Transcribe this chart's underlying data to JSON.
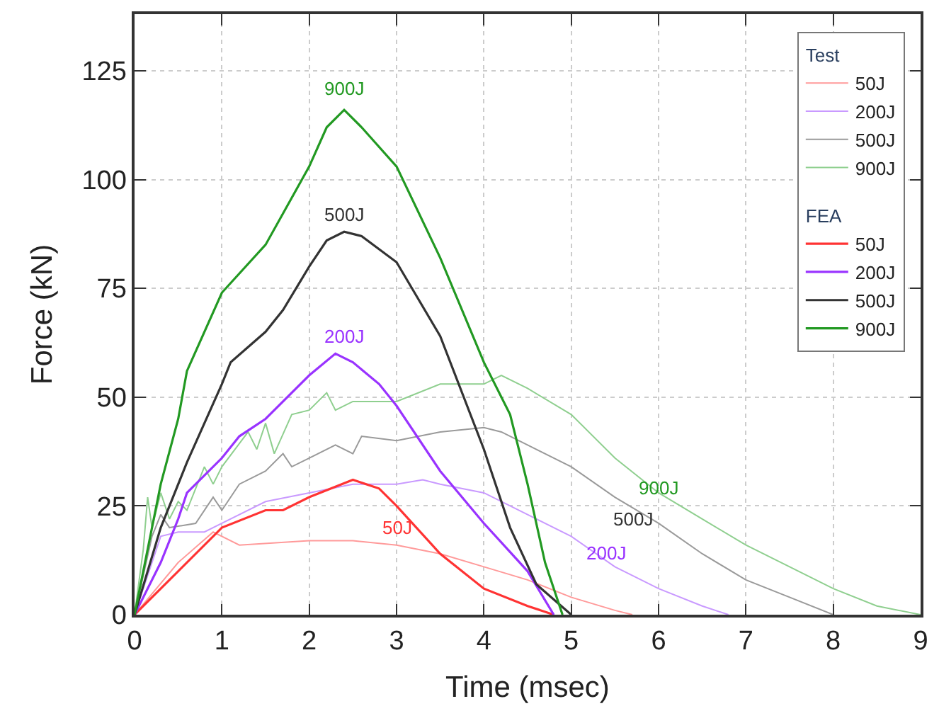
{
  "chart_data": {
    "type": "line",
    "xlabel": "Time (msec)",
    "ylabel": "Force (kN)",
    "legend_title": [
      "Test",
      "FEA"
    ],
    "xlim": [
      0,
      9
    ],
    "ylim": [
      0,
      138
    ],
    "xticks": [
      0,
      1,
      2,
      3,
      4,
      5,
      6,
      7,
      8,
      9
    ],
    "yticks": [
      0,
      25,
      50,
      75,
      100,
      125
    ],
    "grid": true,
    "legend": "top right",
    "line_style": "solid",
    "marker": "none",
    "series": [
      {
        "name": "50J",
        "color": "#ff9a9a",
        "x": [
          0,
          0.5,
          0.9,
          1.2,
          2,
          2.5,
          3,
          3.5,
          4,
          4.5,
          5,
          5.5,
          5.7
        ],
        "values": [
          0,
          12,
          19,
          16,
          17,
          17,
          16,
          14,
          11,
          8,
          4,
          1,
          0
        ]
      },
      {
        "name": "200J",
        "color": "#c99aff",
        "x": [
          0,
          0.3,
          0.5,
          0.8,
          1,
          1.5,
          2,
          2.5,
          3,
          3.3,
          3.5,
          4,
          4.5,
          5,
          5.5,
          6,
          6.5,
          6.8
        ],
        "values": [
          0,
          18,
          19,
          19,
          21,
          26,
          28,
          30,
          30,
          31,
          30,
          28,
          23,
          18,
          11,
          6,
          2,
          0
        ]
      },
      {
        "name": "500J",
        "color": "#9a9a9a",
        "x": [
          0,
          0.2,
          0.3,
          0.4,
          0.7,
          0.9,
          1,
          1.2,
          1.5,
          1.7,
          1.8,
          2,
          2.3,
          2.5,
          2.6,
          3,
          3.5,
          4,
          4.2,
          4.5,
          5,
          5.5,
          6,
          6.5,
          7,
          7.5,
          8
        ],
        "values": [
          0,
          18,
          23,
          20,
          21,
          27,
          24,
          30,
          33,
          37,
          34,
          36,
          39,
          37,
          41,
          40,
          42,
          43,
          42,
          39,
          34,
          27,
          21,
          14,
          8,
          4,
          0
        ]
      },
      {
        "name": "900J",
        "color": "#8fcf8f",
        "x": [
          0,
          0.1,
          0.15,
          0.2,
          0.3,
          0.4,
          0.5,
          0.6,
          0.8,
          0.9,
          1,
          1.3,
          1.4,
          1.5,
          1.6,
          1.8,
          2,
          2.2,
          2.3,
          2.5,
          3,
          3.5,
          4,
          4.2,
          4.5,
          5,
          5.5,
          6,
          6.5,
          7,
          7.5,
          8,
          8.5,
          9
        ],
        "values": [
          0,
          15,
          27,
          20,
          28,
          22,
          26,
          24,
          34,
          30,
          34,
          42,
          38,
          44,
          37,
          46,
          47,
          51,
          47,
          49,
          49,
          53,
          53,
          55,
          52,
          46,
          36,
          28,
          22,
          16,
          11,
          6,
          2,
          0
        ]
      },
      {
        "name": "50J",
        "color": "#ff3333",
        "x": [
          0,
          0.5,
          1,
          1.5,
          1.7,
          2,
          2.5,
          2.8,
          3,
          3.5,
          4,
          4.5,
          4.8
        ],
        "values": [
          0,
          10,
          20,
          24,
          24,
          27,
          31,
          29,
          25,
          14,
          6,
          2,
          0
        ]
      },
      {
        "name": "200J",
        "color": "#9933ff",
        "x": [
          0,
          0.3,
          0.5,
          0.6,
          1,
          1.2,
          1.5,
          2,
          2.3,
          2.5,
          2.8,
          3,
          3.5,
          4,
          4.5,
          4.8
        ],
        "values": [
          0,
          12,
          22,
          28,
          36,
          41,
          45,
          55,
          60,
          58,
          53,
          48,
          33,
          21,
          10,
          0
        ]
      },
      {
        "name": "500J",
        "color": "#333333",
        "x": [
          0,
          0.3,
          0.6,
          0.8,
          1,
          1.1,
          1.5,
          1.7,
          2,
          2.2,
          2.4,
          2.6,
          3,
          3.5,
          4,
          4.3,
          4.6,
          5
        ],
        "values": [
          0,
          20,
          35,
          44,
          53,
          58,
          65,
          70,
          80,
          86,
          88,
          87,
          81,
          64,
          38,
          20,
          7,
          0
        ]
      },
      {
        "name": "900J",
        "color": "#229922",
        "x": [
          0,
          0.3,
          0.5,
          0.6,
          1,
          1.5,
          2,
          2.2,
          2.4,
          2.6,
          3,
          3.5,
          4,
          4.3,
          4.5,
          4.7,
          4.9
        ],
        "values": [
          0,
          30,
          45,
          56,
          74,
          85,
          103,
          112,
          116,
          112,
          103,
          82,
          58,
          46,
          30,
          12,
          0
        ]
      }
    ],
    "annotations": [
      "900J",
      "500J",
      "200J",
      "50J",
      "900J",
      "500J",
      "200J"
    ]
  }
}
